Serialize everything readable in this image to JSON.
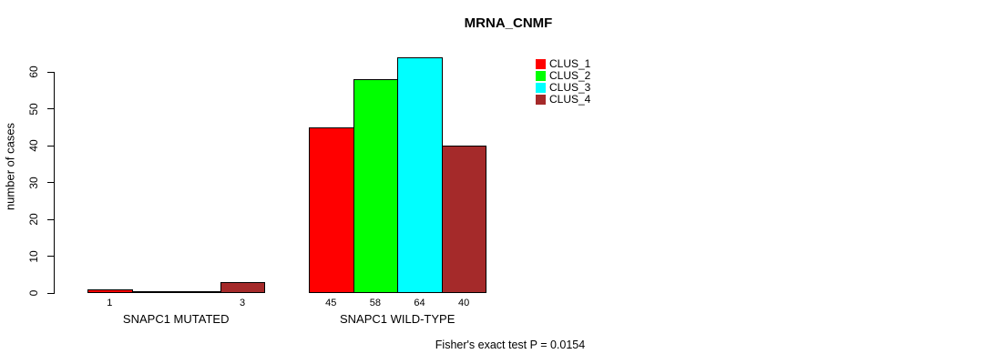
{
  "chart_data": {
    "type": "bar",
    "title": "MRNA_CNMF",
    "ylabel": "number of cases",
    "xlabel": "",
    "groups": [
      "SNAPC1 MUTATED",
      "SNAPC1 WILD-TYPE"
    ],
    "series": [
      {
        "name": "CLUS_1",
        "color": "#FF0000",
        "values": [
          1,
          45
        ]
      },
      {
        "name": "CLUS_2",
        "color": "#00FF00",
        "values": [
          0,
          58
        ]
      },
      {
        "name": "CLUS_3",
        "color": "#00FFFF",
        "values": [
          0,
          64
        ]
      },
      {
        "name": "CLUS_4",
        "color": "#A52A2A",
        "values": [
          3,
          40
        ]
      }
    ],
    "bar_value_labels": [
      [
        "1",
        "",
        "",
        "3"
      ],
      [
        "45",
        "58",
        "64",
        "40"
      ]
    ],
    "yticks": [
      0,
      10,
      20,
      30,
      40,
      50,
      60
    ],
    "ylim": [
      0,
      65
    ],
    "grid": false,
    "legend_position": "top-right",
    "annotation": "Fisher's exact test P = 0.0154",
    "colors": {
      "background": "#ffffff",
      "axis": "#000000",
      "text": "#000000",
      "bar_border": "#000000"
    }
  }
}
